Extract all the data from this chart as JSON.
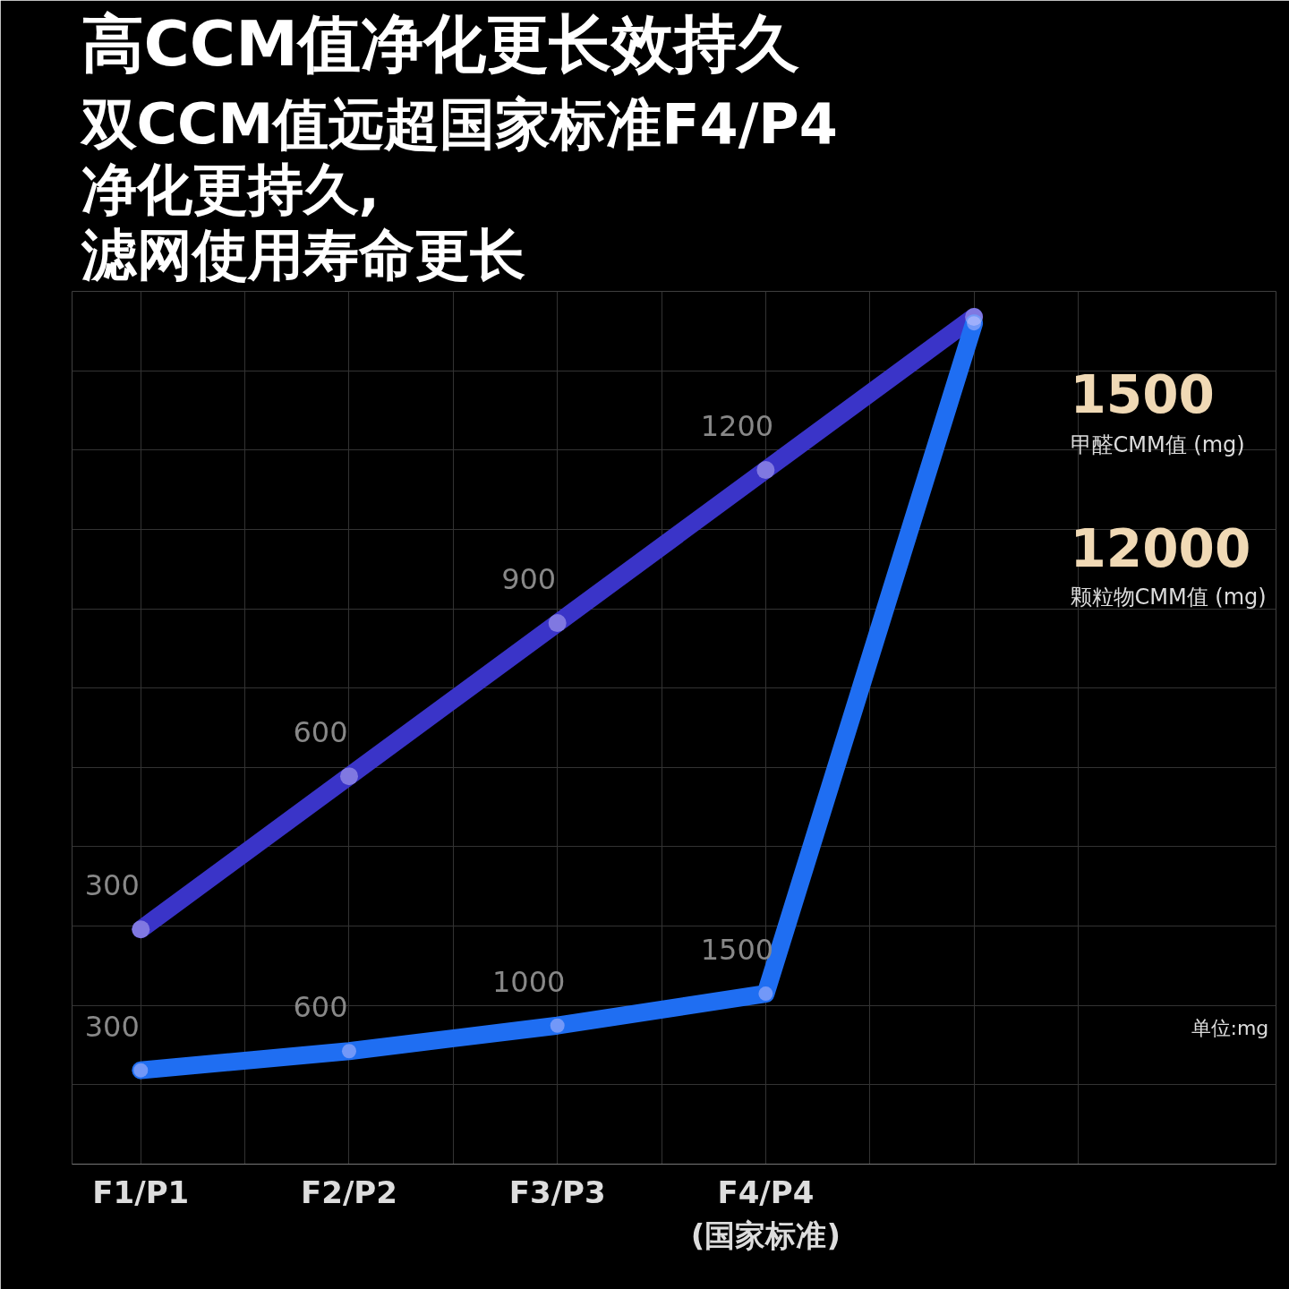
{
  "chart_data": {
    "type": "line",
    "title": "高CCM值净化更长效持久",
    "subtitle": "双CCM值远超国家标准F4/P4\n净化更持久,\n滤网使用寿命更长",
    "categories": [
      "F1/P1",
      "F2/P2",
      "F3/P3",
      "F4/P4\n(国家标准)",
      null
    ],
    "series": [
      {
        "color": "#3a34c8",
        "values": [
          300,
          600,
          900,
          1200,
          1500
        ],
        "value_labels": [
          "300",
          "600",
          "900",
          "1200",
          null
        ]
      },
      {
        "color": "#1f6ef2",
        "values": [
          300,
          600,
          1000,
          1500,
          12000
        ],
        "axis": "y2",
        "value_labels": [
          "300",
          "600",
          "1000",
          "1500",
          null
        ]
      }
    ],
    "ylim": [
      -160,
      1550
    ],
    "y2lim": [
      -1170,
      12500
    ],
    "annotations": [
      "1500",
      "甲醛CMM值 (mg)",
      "12000",
      "颗粒物CMM值 (mg)",
      "单位:mg"
    ],
    "grid": true,
    "marker": "circle",
    "tick_labels": "x"
  }
}
